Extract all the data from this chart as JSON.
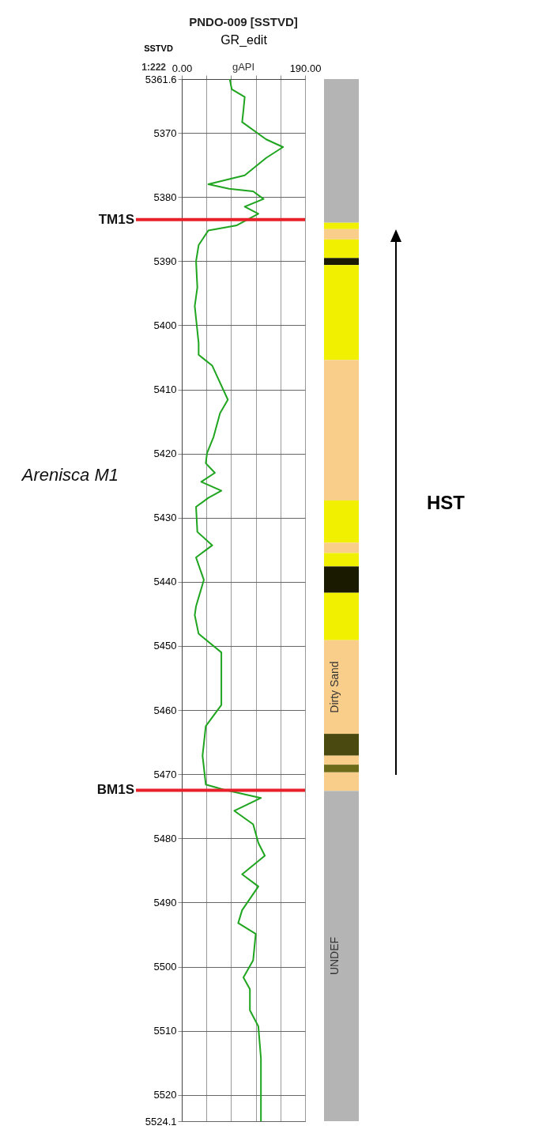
{
  "chart_data": [
    {
      "type": "line",
      "title": "PNDO-009 [SSTVD]",
      "xlabel": "GR_edit",
      "ylabel": "SSTVD",
      "xlim": [
        0,
        190
      ],
      "xticks": [
        {
          "value": 0,
          "label": "0.00"
        },
        {
          "value": 38,
          "label": null
        },
        {
          "value": 76,
          "label": null
        },
        {
          "value": 114,
          "label": null
        },
        {
          "value": 152,
          "label": null
        },
        {
          "value": 190,
          "label": "190.00"
        }
      ],
      "ylim": [
        5524.1,
        5361.6
      ],
      "yticks": [
        5361.6,
        5370,
        5380,
        5390,
        5400,
        5410,
        5420,
        5430,
        5440,
        5450,
        5460,
        5470,
        5480,
        5490,
        5500,
        5510,
        5520,
        5524.1
      ],
      "grid": true,
      "marker": "none",
      "line_style": "solid",
      "series": [
        {
          "color": "#1fa51f",
          "x": [
            74,
            77,
            97,
            95,
            93,
            130,
            156,
            130,
            97,
            41,
            73,
            110,
            126,
            97,
            118,
            85,
            41,
            26,
            22,
            24,
            20,
            26,
            26,
            47,
            71,
            59,
            49,
            39,
            37,
            51,
            30,
            61,
            41,
            22,
            24,
            47,
            22,
            34,
            22,
            20,
            26,
            61,
            61,
            61,
            37,
            32,
            37,
            65,
            122,
            81,
            110,
            118,
            128,
            93,
            118,
            93,
            87,
            114,
            110,
            95,
            105,
            105,
            118,
            122,
            122
          ],
          "values": [
            5361.6,
            5363.2,
            5364.4,
            5366.5,
            5368.3,
            5371.0,
            5372.2,
            5373.9,
            5376.6,
            5378.0,
            5378.7,
            5379.1,
            5380.3,
            5381.5,
            5382.6,
            5384.4,
            5385.2,
            5387.5,
            5390.0,
            5394.1,
            5397.0,
            5402.8,
            5404.6,
            5406.3,
            5411.6,
            5413.7,
            5417.4,
            5419.9,
            5421.5,
            5423.0,
            5424.4,
            5425.8,
            5426.9,
            5428.3,
            5432.2,
            5434.3,
            5436.2,
            5439.7,
            5443.8,
            5445.2,
            5448.1,
            5451.0,
            5454.3,
            5459.2,
            5462.5,
            5467.1,
            5471.6,
            5472.4,
            5473.7,
            5475.7,
            5477.8,
            5480.7,
            5482.7,
            5485.6,
            5487.5,
            5491.2,
            5493.2,
            5494.9,
            5499.0,
            5501.7,
            5503.5,
            5506.8,
            5509.3,
            5514.3,
            5524.1
          ]
        }
      ],
      "ref_lines": [
        {
          "axis": "y",
          "value": 5383.5,
          "label": "TM1S",
          "color": "#e8202a"
        },
        {
          "axis": "y",
          "value": 5472.5,
          "label": "BM1S",
          "color": "#e8202a"
        }
      ],
      "annotations": [
        "gAPI",
        "1:222",
        "Arenisca M1",
        "HST"
      ]
    },
    {
      "type": "other",
      "annotations": [
        "Dirty Sand",
        "UNDEF"
      ]
    }
  ]
}
